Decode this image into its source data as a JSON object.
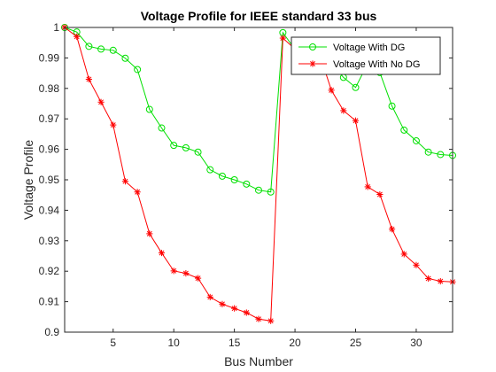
{
  "chart_data": {
    "type": "line",
    "title": "Voltage Profile for IEEE standard 33 bus",
    "xlabel": "Bus Number",
    "ylabel": "Voltage Profile",
    "xlim": [
      1,
      33
    ],
    "ylim": [
      0.9,
      1.0
    ],
    "xticks": [
      5,
      10,
      15,
      20,
      25,
      30
    ],
    "yticks": [
      0.9,
      0.91,
      0.92,
      0.93,
      0.94,
      0.95,
      0.96,
      0.97,
      0.98,
      0.99,
      1
    ],
    "ytick_labels": [
      "0.9",
      "0.91",
      "0.92",
      "0.93",
      "0.94",
      "0.95",
      "0.96",
      "0.97",
      "0.98",
      "0.99",
      "1"
    ],
    "grid": false,
    "legend_position": "top-right",
    "x": [
      1,
      2,
      3,
      4,
      5,
      6,
      7,
      8,
      9,
      10,
      11,
      12,
      13,
      14,
      15,
      16,
      17,
      18,
      19,
      20,
      21,
      22,
      23,
      24,
      25,
      26,
      27,
      28,
      29,
      30,
      31,
      32,
      33
    ],
    "series": [
      {
        "name": "Voltage With DG",
        "color": "#00e000",
        "marker": "circle",
        "values": [
          1.0,
          0.9985,
          0.9938,
          0.9929,
          0.9925,
          0.9899,
          0.9862,
          0.9731,
          0.967,
          0.9613,
          0.9605,
          0.9591,
          0.9533,
          0.9512,
          0.95,
          0.9486,
          0.9466,
          0.946,
          0.9983,
          0.9928,
          0.9925,
          0.991,
          0.9882,
          0.9836,
          0.9803,
          0.9882,
          0.9852,
          0.9742,
          0.9663,
          0.9628,
          0.9591,
          0.9583,
          0.958
        ]
      },
      {
        "name": "Voltage With No DG",
        "color": "#ff0000",
        "marker": "asterisk",
        "values": [
          1.0,
          0.997,
          0.983,
          0.9755,
          0.968,
          0.9495,
          0.946,
          0.9323,
          0.926,
          0.9201,
          0.9193,
          0.9177,
          0.9115,
          0.9092,
          0.9078,
          0.9064,
          0.9043,
          0.9037,
          0.9965,
          0.9929,
          0.9922,
          0.9916,
          0.9794,
          0.9727,
          0.9694,
          0.9477,
          0.9452,
          0.9338,
          0.9256,
          0.922,
          0.9176,
          0.9167,
          0.9165
        ]
      }
    ]
  }
}
